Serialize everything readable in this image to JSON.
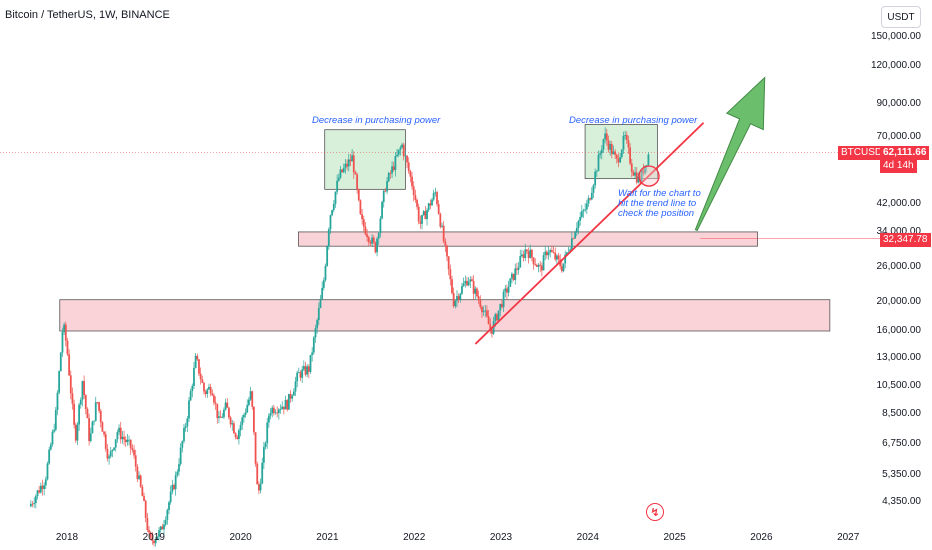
{
  "header": {
    "title": "Bitcoin / TetherUS, 1W, BINANCE",
    "currency": "USDT"
  },
  "price_axis_labels": [
    "150,000.00",
    "120,000.00",
    "90,000.00",
    "70,000.00",
    "42,000.00",
    "34,000.00",
    "26,000.00",
    "20,000.00",
    "16,000.00",
    "13,000.00",
    "10,500.00",
    "8,500.00",
    "6,750.00",
    "5,350.00",
    "4,350.00"
  ],
  "time_axis_labels": [
    "2018",
    "2019",
    "2020",
    "2021",
    "2022",
    "2023",
    "2024",
    "2025",
    "2026",
    "2027"
  ],
  "badges": {
    "symbol": "BTCUSDT",
    "last_price": "62,111.66",
    "countdown": "4d 14h",
    "level_price": "32,347.78"
  },
  "annotations": {
    "left_box": "Decrease in purchasing power",
    "right_box": "Decrease in purchasing power",
    "note_lines": [
      "Wait for the chart to",
      "hit the trend line to",
      "check the position"
    ]
  },
  "colors": {
    "up": "#26a69a",
    "down": "#ef5350",
    "zone_red": "#f8c8cd",
    "zone_green": "#d4edd6",
    "trend": "#f23645",
    "arrow": "#5cb85c",
    "text_blue": "#2962ff",
    "badge_red": "#f23645"
  },
  "chart_data": {
    "type": "candlestick",
    "title": "Bitcoin / TetherUS, 1W, BINANCE",
    "scale": "log",
    "ylim": [
      3800,
      170000
    ],
    "xlim": [
      "2017-08",
      "2027-01"
    ],
    "path": [
      [
        "2017-08-01",
        4300
      ],
      [
        "2017-10-01",
        5200
      ],
      [
        "2017-11-15",
        8500
      ],
      [
        "2017-12-15",
        17000
      ],
      [
        "2018-01-01",
        14000
      ],
      [
        "2018-02-05",
        7000
      ],
      [
        "2018-03-05",
        11000
      ],
      [
        "2018-04-05",
        6900
      ],
      [
        "2018-05-05",
        9500
      ],
      [
        "2018-06-25",
        6000
      ],
      [
        "2018-08-01",
        7500
      ],
      [
        "2018-10-01",
        6500
      ],
      [
        "2018-11-15",
        4500
      ],
      [
        "2018-12-15",
        3200
      ],
      [
        "2019-02-01",
        3500
      ],
      [
        "2019-04-01",
        5200
      ],
      [
        "2019-05-15",
        8000
      ],
      [
        "2019-06-26",
        13000
      ],
      [
        "2019-08-01",
        10000
      ],
      [
        "2019-09-01",
        10500
      ],
      [
        "2019-10-01",
        8000
      ],
      [
        "2019-11-01",
        9000
      ],
      [
        "2019-12-15",
        7200
      ],
      [
        "2020-02-15",
        10000
      ],
      [
        "2020-03-13",
        4500
      ],
      [
        "2020-05-01",
        8800
      ],
      [
        "2020-07-15",
        9200
      ],
      [
        "2020-09-01",
        11500
      ],
      [
        "2020-10-15",
        12000
      ],
      [
        "2020-12-15",
        23000
      ],
      [
        "2021-01-10",
        38000
      ],
      [
        "2021-02-20",
        52000
      ],
      [
        "2021-04-15",
        60000
      ],
      [
        "2021-05-20",
        37000
      ],
      [
        "2021-07-20",
        30000
      ],
      [
        "2021-09-01",
        48000
      ],
      [
        "2021-11-10",
        66000
      ],
      [
        "2022-01-01",
        46000
      ],
      [
        "2022-01-25",
        36000
      ],
      [
        "2022-03-30",
        46000
      ],
      [
        "2022-06-15",
        20000
      ],
      [
        "2022-08-15",
        24000
      ],
      [
        "2022-10-10",
        19500
      ],
      [
        "2022-11-20",
        16000
      ],
      [
        "2023-01-15",
        21000
      ],
      [
        "2023-04-15",
        30000
      ],
      [
        "2023-06-15",
        25500
      ],
      [
        "2023-07-15",
        30000
      ],
      [
        "2023-09-15",
        26000
      ],
      [
        "2023-11-15",
        36000
      ],
      [
        "2024-01-01",
        42000
      ],
      [
        "2024-03-10",
        71000
      ],
      [
        "2024-05-01",
        58000
      ],
      [
        "2024-06-05",
        70000
      ],
      [
        "2024-07-05",
        55000
      ],
      [
        "2024-08-05",
        50000
      ],
      [
        "2024-09-15",
        62000
      ]
    ],
    "zones": [
      {
        "kind": "support",
        "from": "2017-12-01",
        "to": "2026-10-15",
        "low": 16000,
        "high": 20300
      },
      {
        "kind": "support",
        "from": "2020-09-01",
        "to": "2025-12-15",
        "low": 30500,
        "high": 34000
      },
      {
        "kind": "resistance",
        "from": "2020-12-20",
        "to": "2021-11-25",
        "low": 47000,
        "high": 74000,
        "label": "Decrease in purchasing power"
      },
      {
        "kind": "resistance",
        "from": "2023-12-20",
        "to": "2024-10-20",
        "low": 51000,
        "high": 77000,
        "label": "Decrease in purchasing power"
      }
    ],
    "trendline": {
      "from": [
        "2022-09-15",
        14500
      ],
      "to": [
        "2025-05-01",
        78000
      ]
    },
    "level_line": 32347.78,
    "last_price": 62111.66,
    "projection_arrow": {
      "from": [
        "2025-04-01",
        34500
      ],
      "to": [
        "2026-01-15",
        110000
      ]
    },
    "marker_circle": [
      "2024-09-15",
      52000
    ]
  }
}
